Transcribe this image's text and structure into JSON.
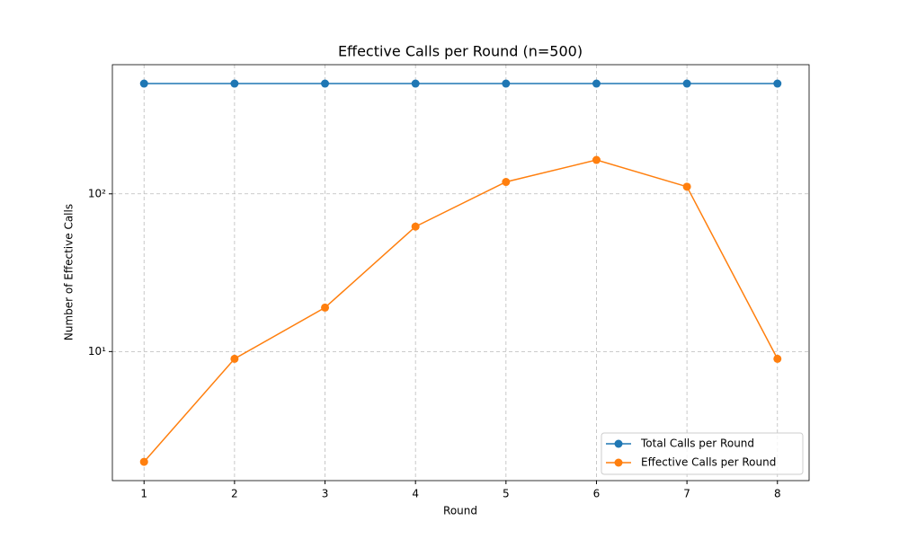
{
  "chart_data": {
    "type": "line",
    "title": "Effective Calls per Round (n=500)",
    "x_label": "Round",
    "y_label": "Number of Effective Calls",
    "x": [
      1,
      2,
      3,
      4,
      5,
      6,
      7,
      8
    ],
    "series": [
      {
        "name": "Total Calls per Round",
        "color": "#1f77b4",
        "values": [
          500,
          500,
          500,
          500,
          500,
          500,
          500,
          500
        ]
      },
      {
        "name": "Effective Calls per Round",
        "color": "#ff7f0e",
        "values": [
          2,
          9,
          19,
          62,
          119,
          164,
          111,
          9
        ]
      }
    ],
    "xlim": [
      0.65,
      8.35
    ],
    "xticks": [
      1,
      2,
      3,
      4,
      5,
      6,
      7,
      8
    ],
    "ylim": [
      1.52,
      659
    ],
    "yscale": "log",
    "yticks": [
      {
        "value": 10,
        "label": "10¹"
      },
      {
        "value": 100,
        "label": "10²"
      }
    ],
    "grid": true,
    "legend": "lower right"
  }
}
